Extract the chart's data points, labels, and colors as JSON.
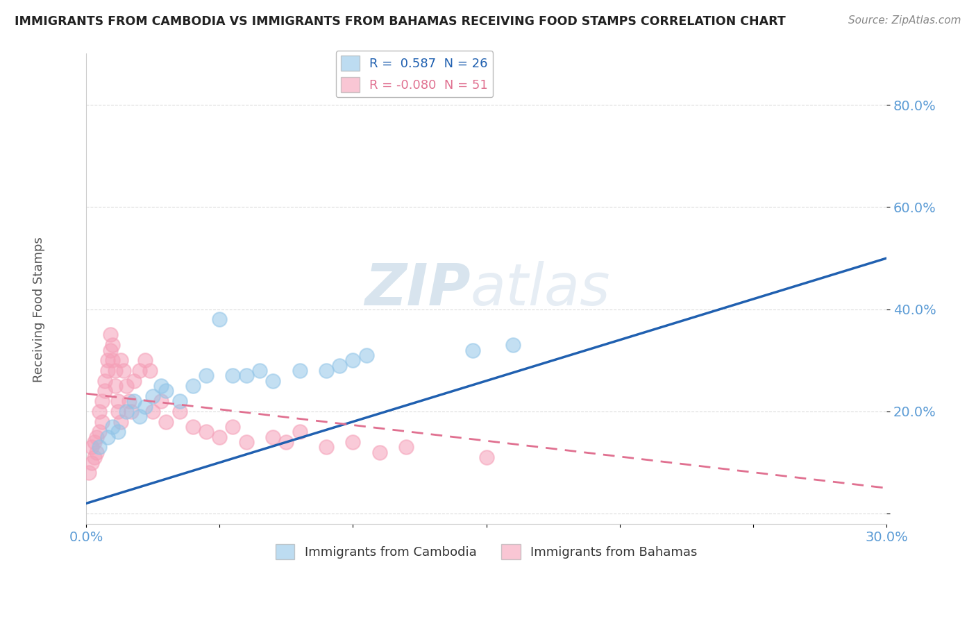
{
  "title": "IMMIGRANTS FROM CAMBODIA VS IMMIGRANTS FROM BAHAMAS RECEIVING FOOD STAMPS CORRELATION CHART",
  "source": "Source: ZipAtlas.com",
  "ylabel": "Receiving Food Stamps",
  "xlim": [
    0.0,
    0.3
  ],
  "ylim": [
    -0.02,
    0.9
  ],
  "ytick_values": [
    0.0,
    0.2,
    0.4,
    0.6,
    0.8
  ],
  "xtick_values": [
    0.0,
    0.05,
    0.1,
    0.15,
    0.2,
    0.25,
    0.3
  ],
  "cambodia_color": "#92c5e8",
  "bahamas_color": "#f5a0b8",
  "trendline_cambodia_color": "#2060b0",
  "trendline_bahamas_color": "#e07090",
  "watermark_color": "#d8e8f0",
  "background_color": "#ffffff",
  "grid_color": "#d8d8d8",
  "tick_label_color": "#5b9bd5",
  "ylabel_color": "#555555",
  "title_color": "#222222",
  "source_color": "#888888",
  "cam_trend_x0": 0.0,
  "cam_trend_y0": 0.02,
  "cam_trend_x1": 0.3,
  "cam_trend_y1": 0.5,
  "bah_trend_x0": 0.0,
  "bah_trend_y0": 0.235,
  "bah_trend_x1": 0.3,
  "bah_trend_y1": 0.05,
  "cambodia_scatter": [
    [
      0.005,
      0.13
    ],
    [
      0.008,
      0.15
    ],
    [
      0.01,
      0.17
    ],
    [
      0.012,
      0.16
    ],
    [
      0.015,
      0.2
    ],
    [
      0.018,
      0.22
    ],
    [
      0.02,
      0.19
    ],
    [
      0.022,
      0.21
    ],
    [
      0.025,
      0.23
    ],
    [
      0.028,
      0.25
    ],
    [
      0.03,
      0.24
    ],
    [
      0.035,
      0.22
    ],
    [
      0.04,
      0.25
    ],
    [
      0.045,
      0.27
    ],
    [
      0.05,
      0.38
    ],
    [
      0.055,
      0.27
    ],
    [
      0.06,
      0.27
    ],
    [
      0.065,
      0.28
    ],
    [
      0.07,
      0.26
    ],
    [
      0.08,
      0.28
    ],
    [
      0.09,
      0.28
    ],
    [
      0.095,
      0.29
    ],
    [
      0.1,
      0.3
    ],
    [
      0.105,
      0.31
    ],
    [
      0.145,
      0.32
    ],
    [
      0.16,
      0.33
    ]
  ],
  "bahamas_scatter": [
    [
      0.001,
      0.08
    ],
    [
      0.002,
      0.1
    ],
    [
      0.002,
      0.13
    ],
    [
      0.003,
      0.11
    ],
    [
      0.003,
      0.14
    ],
    [
      0.004,
      0.12
    ],
    [
      0.004,
      0.15
    ],
    [
      0.005,
      0.16
    ],
    [
      0.005,
      0.2
    ],
    [
      0.006,
      0.18
    ],
    [
      0.006,
      0.22
    ],
    [
      0.007,
      0.24
    ],
    [
      0.007,
      0.26
    ],
    [
      0.008,
      0.28
    ],
    [
      0.008,
      0.3
    ],
    [
      0.009,
      0.32
    ],
    [
      0.009,
      0.35
    ],
    [
      0.01,
      0.33
    ],
    [
      0.01,
      0.3
    ],
    [
      0.011,
      0.28
    ],
    [
      0.011,
      0.25
    ],
    [
      0.012,
      0.22
    ],
    [
      0.012,
      0.2
    ],
    [
      0.013,
      0.18
    ],
    [
      0.013,
      0.3
    ],
    [
      0.014,
      0.28
    ],
    [
      0.015,
      0.25
    ],
    [
      0.016,
      0.22
    ],
    [
      0.017,
      0.2
    ],
    [
      0.018,
      0.26
    ],
    [
      0.02,
      0.28
    ],
    [
      0.022,
      0.3
    ],
    [
      0.024,
      0.28
    ],
    [
      0.025,
      0.2
    ],
    [
      0.028,
      0.22
    ],
    [
      0.03,
      0.18
    ],
    [
      0.035,
      0.2
    ],
    [
      0.04,
      0.17
    ],
    [
      0.045,
      0.16
    ],
    [
      0.05,
      0.15
    ],
    [
      0.055,
      0.17
    ],
    [
      0.06,
      0.14
    ],
    [
      0.07,
      0.15
    ],
    [
      0.075,
      0.14
    ],
    [
      0.08,
      0.16
    ],
    [
      0.09,
      0.13
    ],
    [
      0.1,
      0.14
    ],
    [
      0.11,
      0.12
    ],
    [
      0.12,
      0.13
    ],
    [
      0.15,
      0.11
    ]
  ]
}
